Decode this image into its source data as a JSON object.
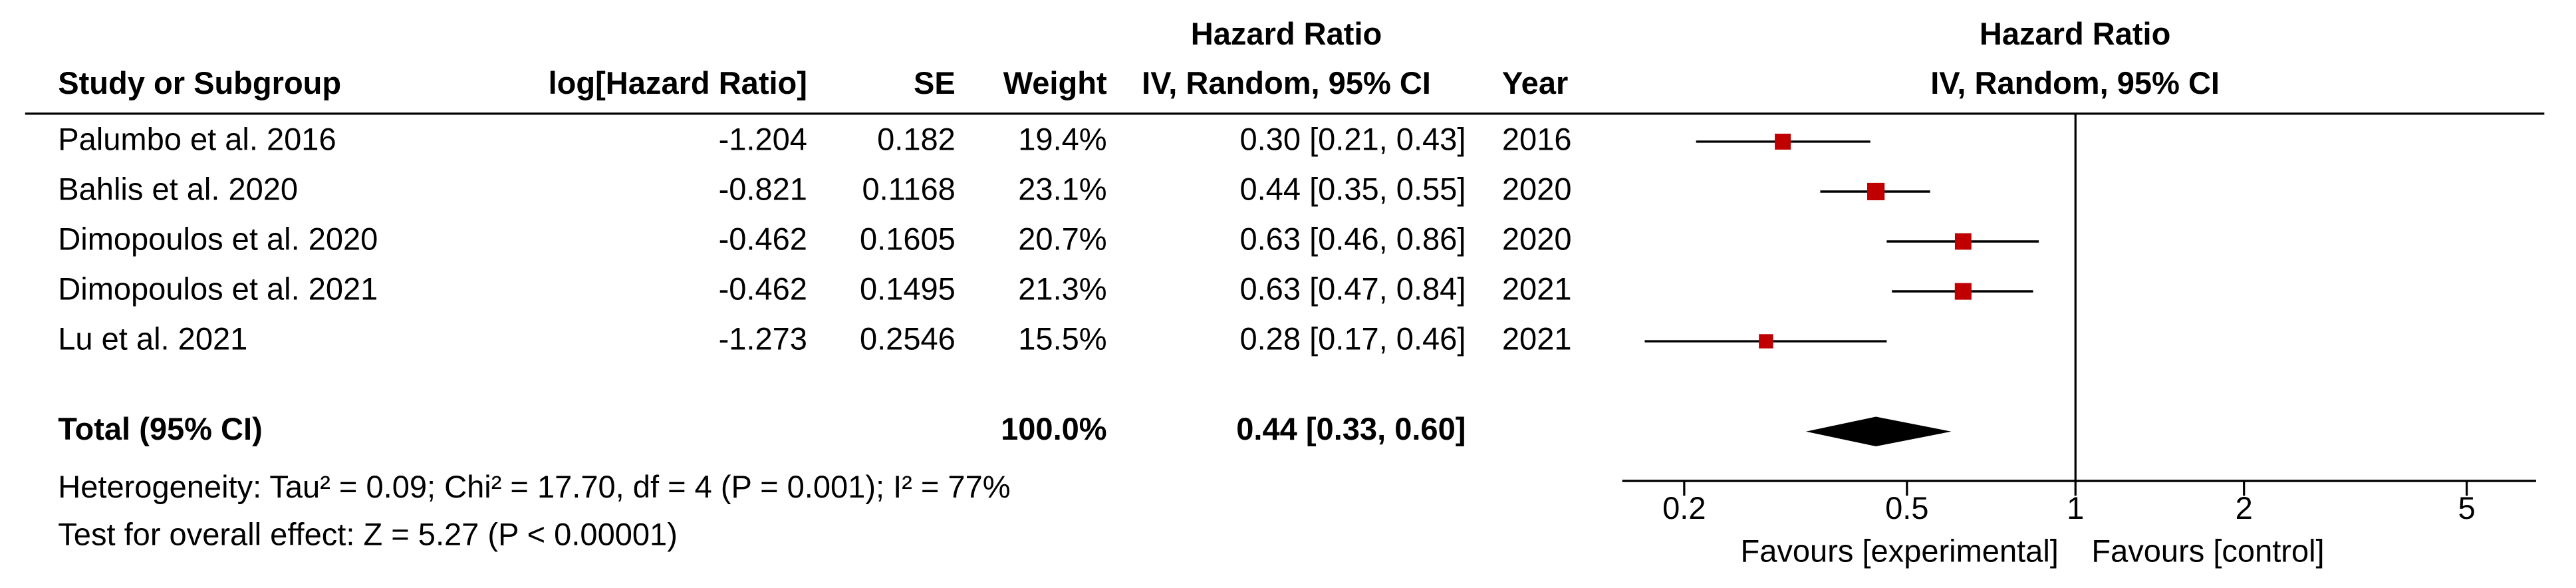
{
  "chart_data": {
    "type": "forest",
    "column_headers": {
      "study": "Study or Subgroup",
      "log_hr": "log[Hazard Ratio]",
      "se": "SE",
      "weight": "Weight",
      "ci_top": "Hazard Ratio",
      "ci": "IV, Random, 95% CI",
      "year": "Year"
    },
    "plot_headers": [
      "Hazard Ratio",
      "IV, Random, 95% CI"
    ],
    "studies": [
      {
        "name": "Palumbo et al. 2016",
        "log_hr": -1.204,
        "se": 0.182,
        "weight": 19.4,
        "weight_label": "19.4%",
        "hr": 0.3,
        "lower": 0.21,
        "upper": 0.43,
        "ci_label": "0.30 [0.21, 0.43]",
        "year": 2016
      },
      {
        "name": "Bahlis et al. 2020",
        "log_hr": -0.821,
        "se": 0.1168,
        "weight": 23.1,
        "weight_label": "23.1%",
        "hr": 0.44,
        "lower": 0.35,
        "upper": 0.55,
        "ci_label": "0.44 [0.35, 0.55]",
        "year": 2020
      },
      {
        "name": "Dimopoulos et al. 2020",
        "log_hr": -0.462,
        "se": 0.1605,
        "weight": 20.7,
        "weight_label": "20.7%",
        "hr": 0.63,
        "lower": 0.46,
        "upper": 0.86,
        "ci_label": "0.63 [0.46, 0.86]",
        "year": 2020
      },
      {
        "name": "Dimopoulos et al. 2021",
        "log_hr": -0.462,
        "se": 0.1495,
        "weight": 21.3,
        "weight_label": "21.3%",
        "hr": 0.63,
        "lower": 0.47,
        "upper": 0.84,
        "ci_label": "0.63 [0.47, 0.84]",
        "year": 2021
      },
      {
        "name": "Lu et al. 2021",
        "log_hr": -1.273,
        "se": 0.2546,
        "weight": 15.5,
        "weight_label": "15.5%",
        "hr": 0.28,
        "lower": 0.17,
        "upper": 0.46,
        "ci_label": "0.28 [0.17, 0.46]",
        "year": 2021
      }
    ],
    "total": {
      "name": "Total (95% CI)",
      "weight": 100.0,
      "weight_label": "100.0%",
      "hr": 0.44,
      "lower": 0.33,
      "upper": 0.6,
      "ci_label": "0.44 [0.33, 0.60]"
    },
    "notes": [
      "Heterogeneity: Tau² = 0.09; Chi² = 17.70, df = 4 (P = 0.001); I² = 77%",
      "Test for overall effect: Z = 5.27 (P < 0.00001)"
    ],
    "x_scale": "log",
    "xlim": [
      0.155,
      6.65
    ],
    "xticks": [
      0.2,
      0.5,
      1,
      2,
      5
    ],
    "x_labels": [
      "Favours [experimental]",
      "Favours [control]"
    ],
    "color": "#c00000",
    "diamond_color": "#000000"
  }
}
